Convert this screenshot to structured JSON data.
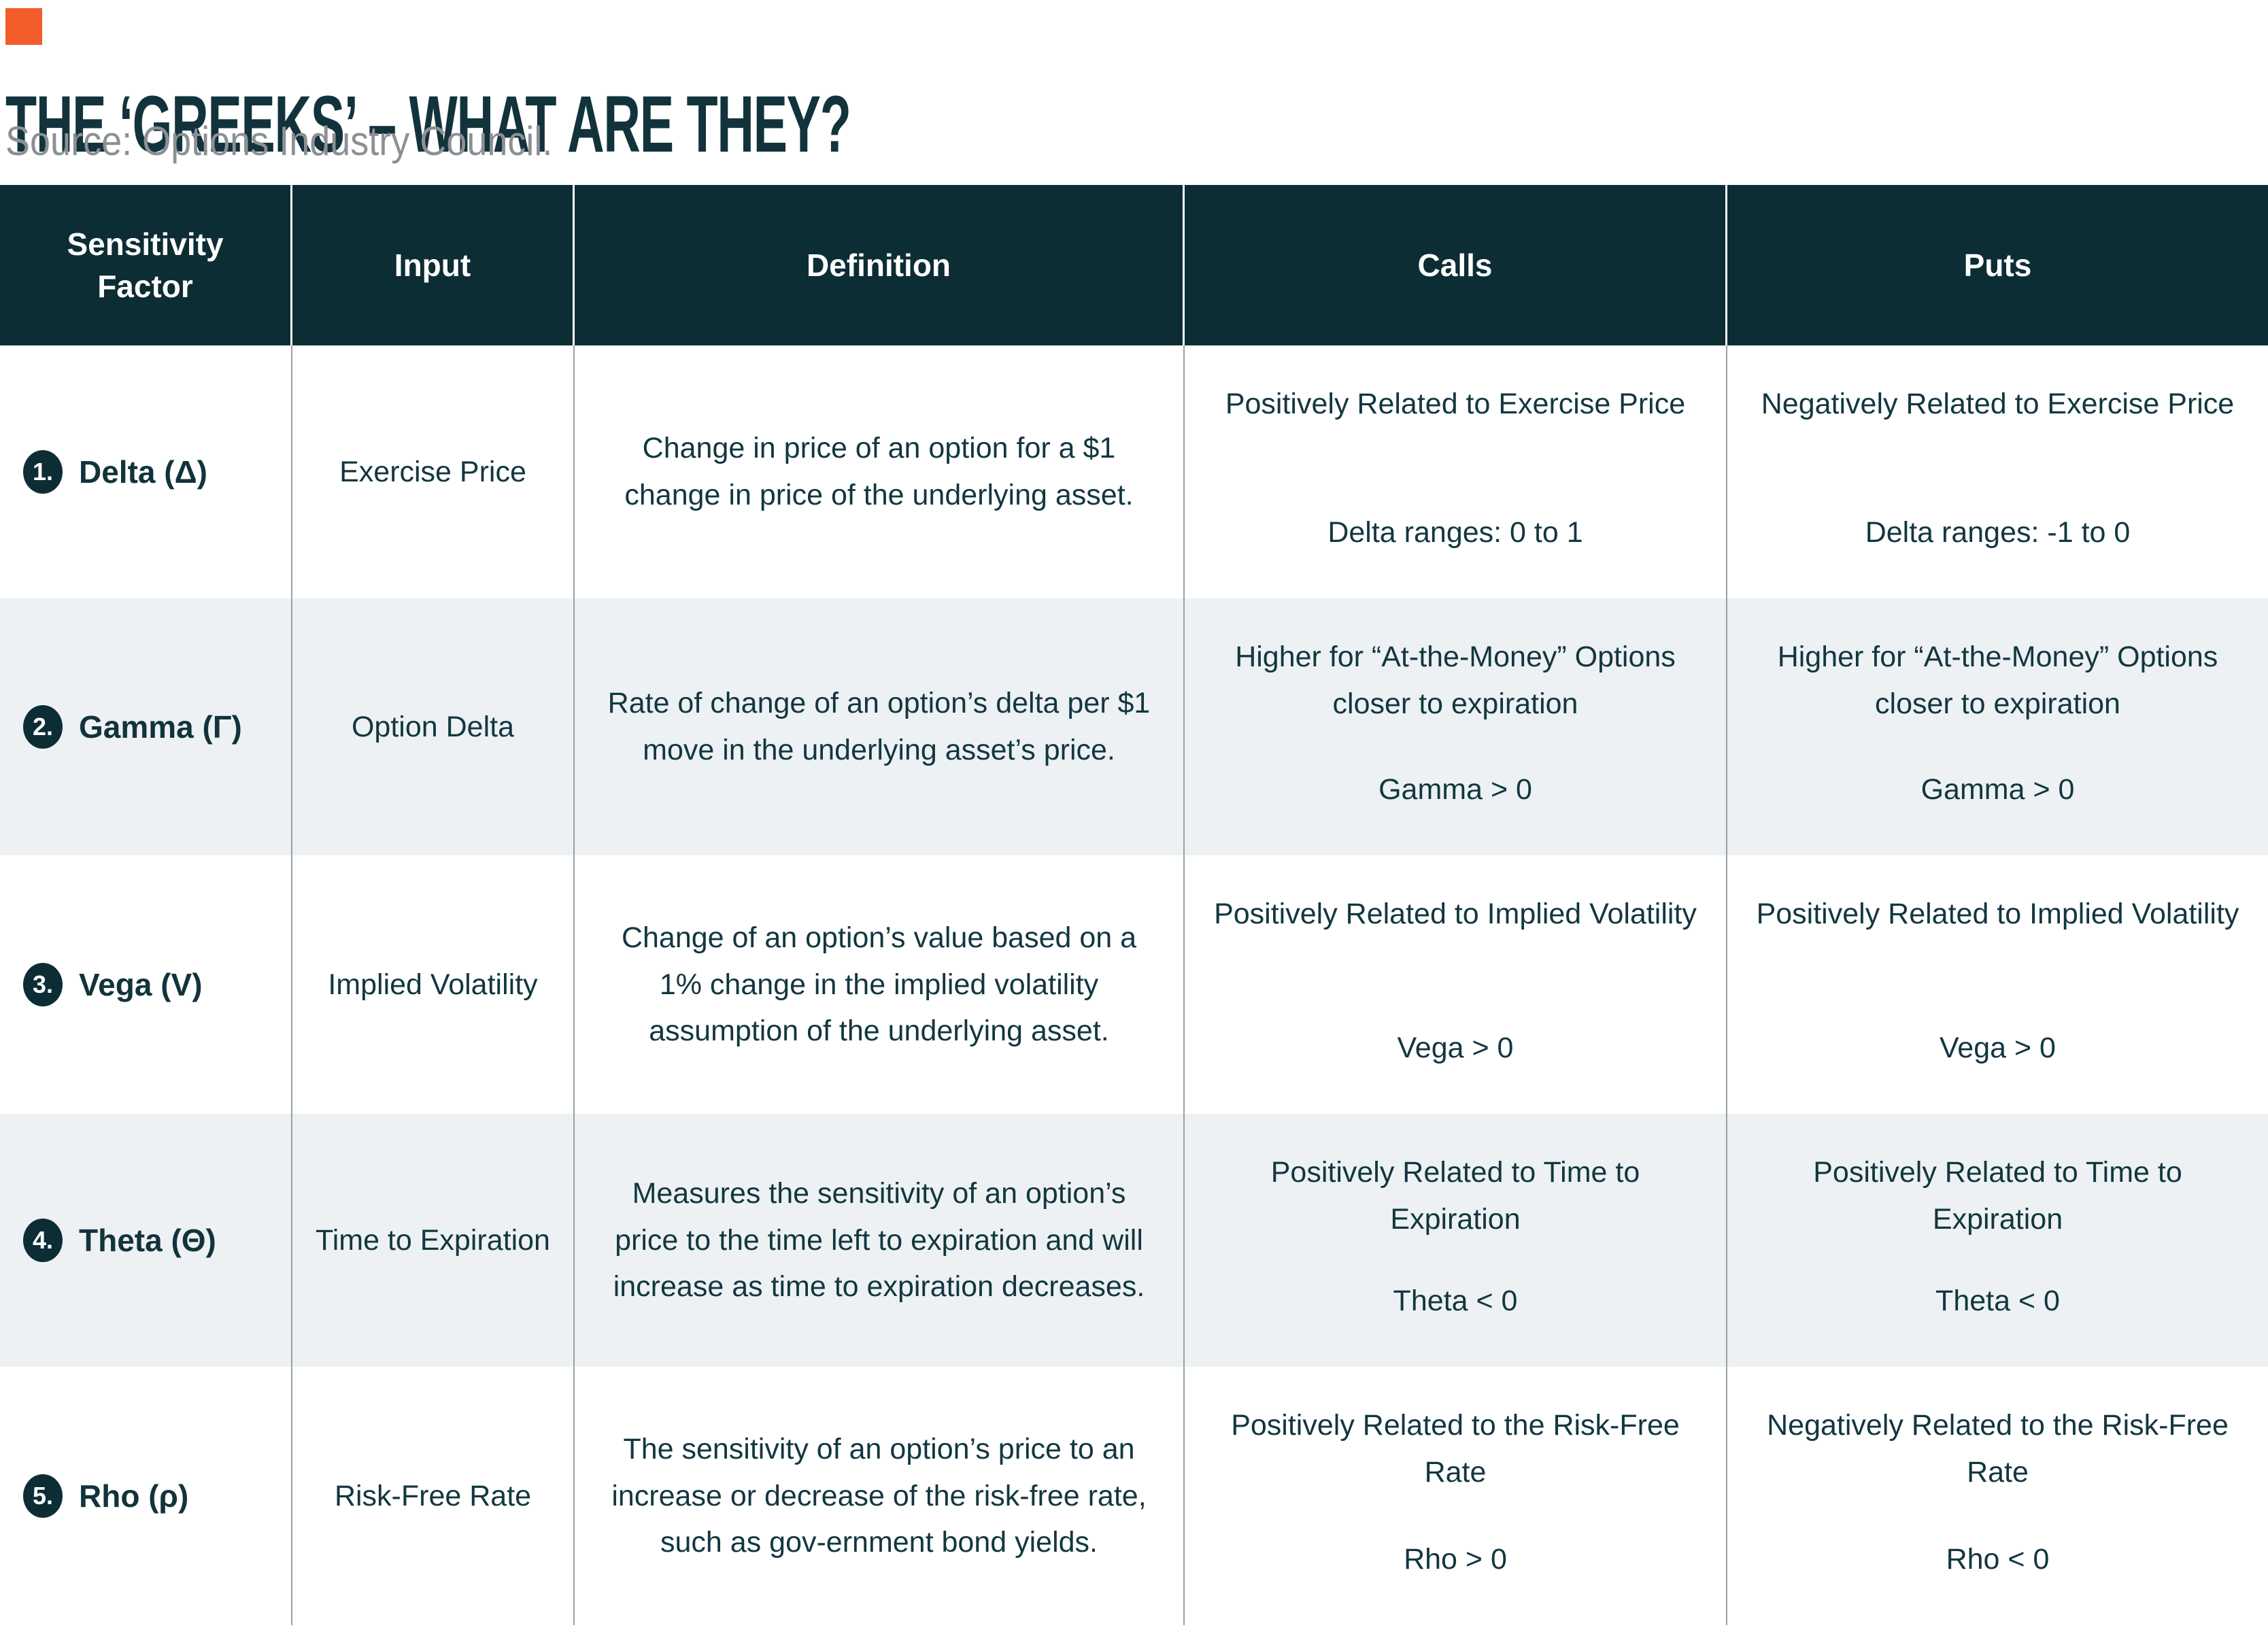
{
  "page": {
    "title": "THE ‘GREEKS’ – WHAT ARE THEY?",
    "source": "Source: Options Industry Council.",
    "accent_color": "#F25C2A"
  },
  "colors": {
    "header_bg": "#0D2D35",
    "body_text": "#123740",
    "alt_row_bg": "#EDF1F3",
    "divider": "#98A1A4",
    "header_divider": "#FBFBFB"
  },
  "table": {
    "columns": [
      "Sensitivity Factor",
      "Input",
      "Definition",
      "Calls",
      "Puts"
    ],
    "rows": [
      {
        "number": "1.",
        "factor": "Delta (Δ)",
        "input": "Exercise Price",
        "definition": "Change in price of an option for a $1 change in price of the underlying asset.",
        "calls": {
          "relation": "Positively Related to Exercise Price",
          "range": "Delta ranges: 0 to 1"
        },
        "puts": {
          "relation": "Negatively Related to Exercise Price",
          "range": "Delta ranges: -1 to 0"
        }
      },
      {
        "number": "2.",
        "factor": "Gamma (Γ)",
        "input": "Option Delta",
        "definition": "Rate of change of an option’s delta per $1 move in the underlying asset’s price.",
        "calls": {
          "relation": "Higher for “At-the-Money” Options closer to expiration",
          "range": "Gamma > 0"
        },
        "puts": {
          "relation": "Higher for “At-the-Money” Options closer to expiration",
          "range": "Gamma > 0"
        }
      },
      {
        "number": "3.",
        "factor": "Vega (V)",
        "input": "Implied Volatility",
        "definition": "Change of an option’s value based on a 1% change in the implied volatility assumption of the underlying asset.",
        "calls": {
          "relation": "Positively Related to Implied Volatility",
          "range": "Vega > 0"
        },
        "puts": {
          "relation": "Positively Related to Implied Volatility",
          "range": "Vega > 0"
        }
      },
      {
        "number": "4.",
        "factor": "Theta (Θ)",
        "input": "Time to Expiration",
        "definition": "Measures the sensitivity of an option’s price to the time left to expiration and will increase as time to expiration decreases.",
        "calls": {
          "relation": "Positively Related to Time to Expiration",
          "range": "Theta < 0"
        },
        "puts": {
          "relation": "Positively Related to Time to Expiration",
          "range": "Theta < 0"
        }
      },
      {
        "number": "5.",
        "factor": "Rho (ρ)",
        "input": "Risk-Free Rate",
        "definition": "The sensitivity of an option’s price to an increase or decrease of the risk-free rate, such as gov-ernment bond yields.",
        "calls": {
          "relation": "Positively Related to the Risk-Free Rate",
          "range": "Rho > 0"
        },
        "puts": {
          "relation": "Negatively Related to the Risk-Free Rate",
          "range": "Rho < 0"
        }
      }
    ]
  }
}
